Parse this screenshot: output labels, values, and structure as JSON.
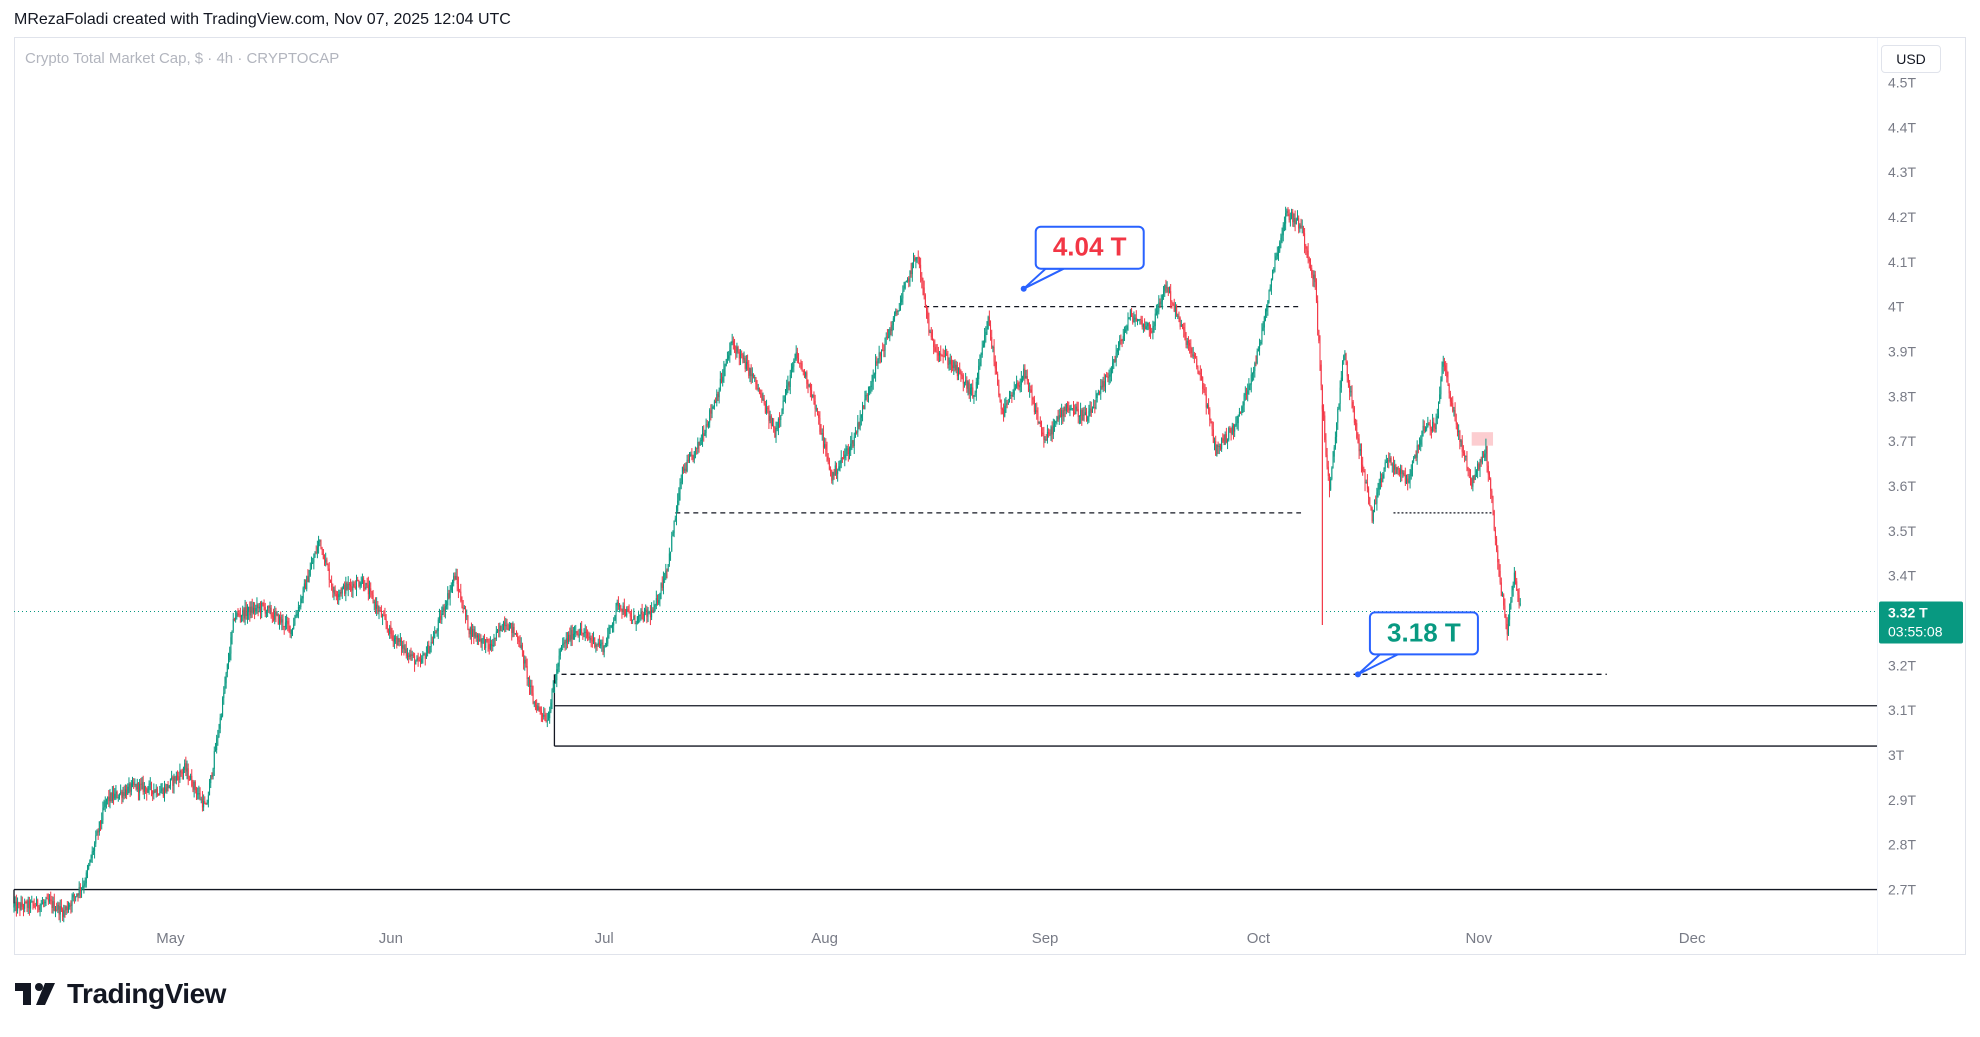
{
  "header": {
    "attribution": "MRezaFoladi created with TradingView.com, Nov 07, 2025 12:04 UTC"
  },
  "symbol_title": "Crypto Total Market Cap, $ · 4h · CRYPTOCAP",
  "currency_button": "USD",
  "logo_text": "TradingView",
  "colors": {
    "up": "#089981",
    "down": "#f23645",
    "callout_blue": "#2962ff",
    "price_tag": "#089981",
    "grid_text": "#787b86"
  },
  "chart_data": {
    "type": "candlestick",
    "title": "Crypto Total Market Cap, $ · 4h · CRYPTOCAP",
    "currency": "USD",
    "y_unit": "T",
    "ylim": [
      2.65,
      4.55
    ],
    "y_ticks": [
      2.7,
      2.8,
      2.9,
      3.0,
      3.1,
      3.2,
      3.3,
      3.4,
      3.5,
      3.6,
      3.7,
      3.8,
      3.9,
      4.0,
      4.1,
      4.2,
      4.3,
      4.4,
      4.5
    ],
    "y_tick_labels": [
      "2.7T",
      "2.8T",
      "2.9T",
      "3T",
      "3.1T",
      "3.2T",
      "3.3T",
      "3.4T",
      "3.5T",
      "3.6T",
      "3.7T",
      "3.8T",
      "3.9T",
      "4T",
      "4.1T",
      "4.2T",
      "4.3T",
      "4.4T",
      "4.5T"
    ],
    "x_range": [
      "2025-04-09",
      "2025-12-27"
    ],
    "x_ticks": [
      {
        "label": "May",
        "date": "2025-05-01"
      },
      {
        "label": "Jun",
        "date": "2025-06-01"
      },
      {
        "label": "Jul",
        "date": "2025-07-01"
      },
      {
        "label": "Aug",
        "date": "2025-08-01"
      },
      {
        "label": "Sep",
        "date": "2025-09-01"
      },
      {
        "label": "Oct",
        "date": "2025-10-01"
      },
      {
        "label": "Nov",
        "date": "2025-11-01"
      },
      {
        "label": "Dec",
        "date": "2025-12-01"
      }
    ],
    "grid": false,
    "legend": "none",
    "price_path": [
      [
        "2025-04-09",
        2.66
      ],
      [
        "2025-04-14",
        2.67
      ],
      [
        "2025-04-16",
        2.65
      ],
      [
        "2025-04-19",
        2.72
      ],
      [
        "2025-04-22",
        2.9
      ],
      [
        "2025-04-26",
        2.93
      ],
      [
        "2025-04-30",
        2.92
      ],
      [
        "2025-05-03",
        2.97
      ],
      [
        "2025-05-06",
        2.88
      ],
      [
        "2025-05-08",
        3.08
      ],
      [
        "2025-05-10",
        3.31
      ],
      [
        "2025-05-14",
        3.33
      ],
      [
        "2025-05-18",
        3.28
      ],
      [
        "2025-05-22",
        3.48
      ],
      [
        "2025-05-24",
        3.36
      ],
      [
        "2025-05-28",
        3.39
      ],
      [
        "2025-06-01",
        3.27
      ],
      [
        "2025-06-05",
        3.2
      ],
      [
        "2025-06-07",
        3.26
      ],
      [
        "2025-06-10",
        3.4
      ],
      [
        "2025-06-12",
        3.28
      ],
      [
        "2025-06-15",
        3.24
      ],
      [
        "2025-06-17",
        3.3
      ],
      [
        "2025-06-19",
        3.26
      ],
      [
        "2025-06-21",
        3.12
      ],
      [
        "2025-06-23",
        3.08
      ],
      [
        "2025-06-25",
        3.24
      ],
      [
        "2025-06-27",
        3.28
      ],
      [
        "2025-07-01",
        3.24
      ],
      [
        "2025-07-03",
        3.34
      ],
      [
        "2025-07-05",
        3.3
      ],
      [
        "2025-07-08",
        3.32
      ],
      [
        "2025-07-10",
        3.43
      ],
      [
        "2025-07-12",
        3.63
      ],
      [
        "2025-07-14",
        3.68
      ],
      [
        "2025-07-17",
        3.81
      ],
      [
        "2025-07-19",
        3.92
      ],
      [
        "2025-07-22",
        3.84
      ],
      [
        "2025-07-25",
        3.72
      ],
      [
        "2025-07-28",
        3.89
      ],
      [
        "2025-07-30",
        3.82
      ],
      [
        "2025-08-02",
        3.62
      ],
      [
        "2025-08-05",
        3.7
      ],
      [
        "2025-08-08",
        3.86
      ],
      [
        "2025-08-11",
        3.98
      ],
      [
        "2025-08-14",
        4.12
      ],
      [
        "2025-08-16",
        3.92
      ],
      [
        "2025-08-19",
        3.87
      ],
      [
        "2025-08-22",
        3.8
      ],
      [
        "2025-08-24",
        3.97
      ],
      [
        "2025-08-26",
        3.76
      ],
      [
        "2025-08-29",
        3.85
      ],
      [
        "2025-09-01",
        3.7
      ],
      [
        "2025-09-04",
        3.78
      ],
      [
        "2025-09-07",
        3.75
      ],
      [
        "2025-09-10",
        3.85
      ],
      [
        "2025-09-13",
        3.98
      ],
      [
        "2025-09-16",
        3.95
      ],
      [
        "2025-09-18",
        4.05
      ],
      [
        "2025-09-20",
        3.96
      ],
      [
        "2025-09-23",
        3.84
      ],
      [
        "2025-09-25",
        3.68
      ],
      [
        "2025-09-28",
        3.74
      ],
      [
        "2025-10-01",
        3.9
      ],
      [
        "2025-10-03",
        4.08
      ],
      [
        "2025-10-05",
        4.21
      ],
      [
        "2025-10-07",
        4.18
      ],
      [
        "2025-10-09",
        4.05
      ],
      [
        "2025-10-10",
        3.78
      ],
      [
        "2025-10-11",
        3.58
      ],
      [
        "2025-10-13",
        3.9
      ],
      [
        "2025-10-15",
        3.7
      ],
      [
        "2025-10-17",
        3.53
      ],
      [
        "2025-10-19",
        3.66
      ],
      [
        "2025-10-22",
        3.61
      ],
      [
        "2025-10-24",
        3.72
      ],
      [
        "2025-10-26",
        3.74
      ],
      [
        "2025-10-27",
        3.88
      ],
      [
        "2025-10-29",
        3.72
      ],
      [
        "2025-10-31",
        3.61
      ],
      [
        "2025-11-02",
        3.68
      ],
      [
        "2025-11-03",
        3.54
      ],
      [
        "2025-11-04",
        3.38
      ],
      [
        "2025-11-05",
        3.28
      ],
      [
        "2025-11-06",
        3.4
      ],
      [
        "2025-11-07",
        3.32
      ]
    ],
    "last_price": {
      "value": 3.32,
      "label": "3.32 T",
      "countdown": "03:55:08"
    },
    "callouts": [
      {
        "text": "4.04 T",
        "date": "2025-08-29",
        "value": 4.04,
        "color": "#f23645"
      },
      {
        "text": "3.18 T",
        "date": "2025-10-15",
        "value": 3.18,
        "color": "#089981"
      }
    ],
    "dashed_lines": [
      {
        "from": "2025-08-15",
        "to": "2025-10-07",
        "value": 4.0
      },
      {
        "from": "2025-07-11",
        "to": "2025-10-07",
        "value": 3.54
      },
      {
        "from": "2025-06-25",
        "to": "2025-11-19",
        "value": 3.18
      }
    ],
    "dotted_lines": [
      {
        "from": "2025-10-20",
        "to": "2025-11-03",
        "value": 3.54
      }
    ],
    "solid_lines": [
      {
        "from": "2025-06-24",
        "to": "2025-12-27",
        "value": 3.11
      },
      {
        "from": "2025-06-24",
        "to": "2025-12-27",
        "value": 3.02
      },
      {
        "from": "2025-04-09",
        "to": "2025-12-27",
        "value": 2.7
      }
    ],
    "vertical_markers": [
      {
        "date": "2025-06-24",
        "from": 3.02,
        "to": 3.18
      },
      {
        "date": "2025-04-09",
        "from": 2.66,
        "to": 2.7
      }
    ],
    "highlight_zone": {
      "from": "2025-10-31",
      "to": "2025-11-03",
      "low": 3.69,
      "high": 3.72
    }
  }
}
